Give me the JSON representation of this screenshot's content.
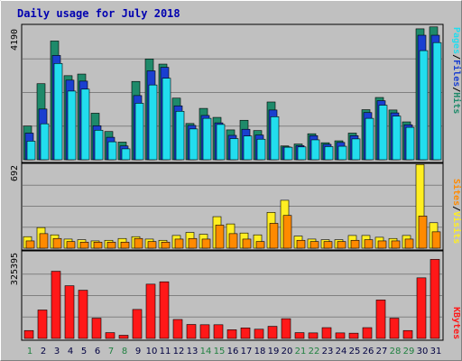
{
  "chart_data": {
    "type": "bar",
    "title": "Daily usage for July 2018",
    "categories": [
      "1",
      "2",
      "3",
      "4",
      "5",
      "6",
      "7",
      "8",
      "9",
      "10",
      "11",
      "12",
      "13",
      "14",
      "15",
      "16",
      "17",
      "18",
      "19",
      "20",
      "21",
      "22",
      "23",
      "24",
      "25",
      "26",
      "27",
      "28",
      "29",
      "30",
      "31"
    ],
    "weekend_days": [
      "1",
      "7",
      "8",
      "14",
      "15",
      "21",
      "22",
      "28",
      "29"
    ],
    "panels": [
      {
        "name": "hits-files-pages",
        "ymax_label": "4190",
        "ymax": 4190,
        "legend": [
          "Pages",
          "/",
          "Files",
          "/",
          "Hits"
        ],
        "series": [
          {
            "name": "Hits",
            "color": "#1e8a6a",
            "values": [
              1050,
              2370,
              3700,
              2620,
              2670,
              1450,
              880,
              550,
              2440,
              3140,
              2980,
              1920,
              1130,
              1600,
              1320,
              930,
              1230,
              910,
              1800,
              430,
              490,
              810,
              530,
              590,
              830,
              1560,
              1940,
              1550,
              1180,
              4080,
              4140
            ]
          },
          {
            "name": "Files",
            "color": "#1a3fd0",
            "values": [
              830,
              1580,
              3250,
              2480,
              2450,
              1060,
              700,
              430,
              2000,
              2770,
              2880,
              1680,
              1070,
              1380,
              1150,
              760,
              950,
              770,
              1550,
              400,
              440,
              750,
              480,
              540,
              750,
              1470,
              1840,
              1460,
              1090,
              3880,
              3880
            ]
          },
          {
            "name": "Pages",
            "color": "#22ddee",
            "values": [
              580,
              1120,
              3000,
              2140,
              2200,
              920,
              560,
              340,
              1760,
              2330,
              2540,
              1510,
              960,
              1290,
              1100,
              660,
              740,
              640,
              1340,
              390,
              400,
              620,
              410,
              420,
              650,
              1290,
              1700,
              1360,
              1010,
              3400,
              3650
            ]
          }
        ]
      },
      {
        "name": "visits-sites",
        "ymax_label": "692",
        "ymax": 692,
        "legend": [
          "Sites",
          "/",
          "Visits"
        ],
        "series": [
          {
            "name": "Visits",
            "color": "#ffee22",
            "values": [
              95,
              170,
              110,
              75,
              70,
              60,
              65,
              80,
              95,
              75,
              65,
              105,
              130,
              115,
              260,
              200,
              125,
              110,
              295,
              395,
              100,
              75,
              70,
              70,
              105,
              105,
              90,
              80,
              105,
              690,
              210
            ]
          },
          {
            "name": "Sites",
            "color": "#ff8a00",
            "values": [
              60,
              120,
              80,
              55,
              50,
              50,
              50,
              50,
              80,
              55,
              50,
              75,
              80,
              75,
              190,
              120,
              75,
              55,
              205,
              270,
              65,
              55,
              55,
              55,
              65,
              70,
              60,
              60,
              75,
              265,
              135
            ]
          }
        ]
      },
      {
        "name": "kbytes",
        "ymax_label": "325395",
        "ymax": 325395,
        "legend": [
          "KBytes"
        ],
        "series": [
          {
            "name": "KBytes",
            "color": "#ff1818",
            "values": [
              30000,
              108000,
              255000,
              200000,
              183000,
              77000,
              22000,
              12000,
              110000,
              206000,
              215000,
              72000,
              53000,
              52000,
              52000,
              33000,
              40000,
              35000,
              46000,
              75000,
              22000,
              21000,
              41000,
              21000,
              20000,
              41000,
              146000,
              77000,
              30000,
              230000,
              300000
            ]
          }
        ]
      }
    ]
  }
}
